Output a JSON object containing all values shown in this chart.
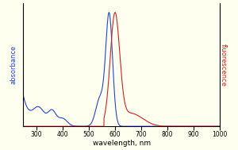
{
  "xlabel": "wavelength, nm",
  "ylabel_left": "absorbance",
  "ylabel_right": "fluorescence",
  "xlim": [
    250,
    1000
  ],
  "ylim": [
    0,
    1.08
  ],
  "background_color": "#fffff0",
  "blue_color": "#2244cc",
  "red_color": "#cc2222",
  "xticks": [
    300,
    400,
    500,
    600,
    700,
    800,
    900,
    1000
  ],
  "abs_peak_nm": 578,
  "em_peak_nm": 600
}
